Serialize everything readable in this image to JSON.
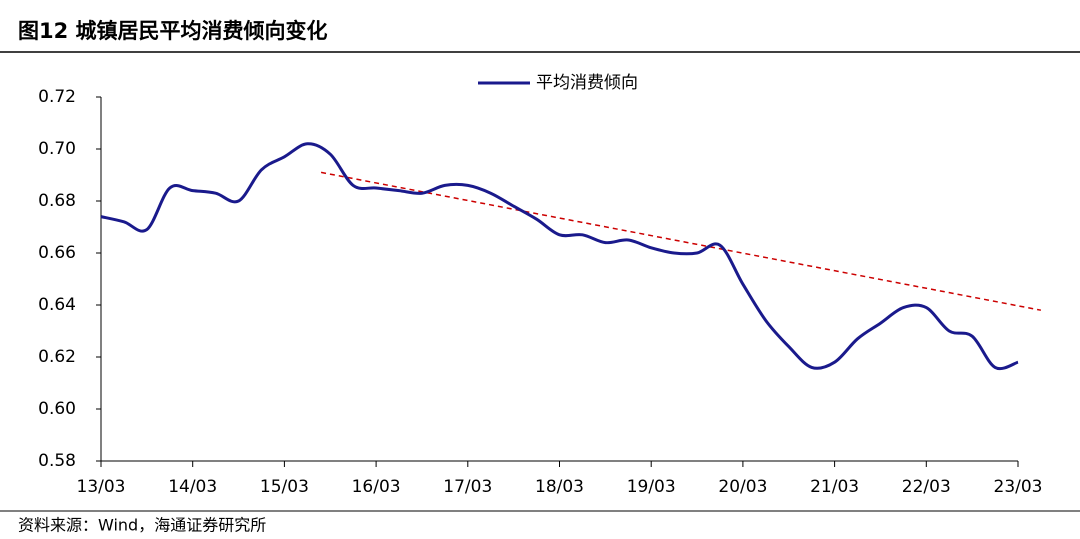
{
  "header": {
    "title": "图12 城镇居民平均消费倾向变化"
  },
  "chart_data": {
    "type": "line",
    "categories": [
      "13/03",
      null,
      null,
      null,
      "14/03",
      null,
      null,
      null,
      "15/03",
      null,
      null,
      null,
      "16/03",
      null,
      null,
      null,
      "17/03",
      null,
      null,
      null,
      "18/03",
      null,
      null,
      null,
      "19/03",
      null,
      null,
      null,
      "20/03",
      null,
      null,
      null,
      "21/03",
      null,
      null,
      null,
      "22/03",
      null,
      null,
      null,
      "23/03"
    ],
    "series": [
      {
        "name": "平均消费倾向",
        "color": "#1a1a8c",
        "values": [
          0.674,
          0.672,
          0.669,
          0.685,
          0.684,
          0.683,
          0.68,
          0.692,
          0.697,
          0.702,
          0.698,
          0.686,
          0.685,
          0.684,
          0.683,
          0.686,
          0.686,
          0.683,
          0.678,
          0.673,
          0.667,
          0.667,
          0.664,
          0.665,
          0.662,
          0.66,
          0.66,
          0.663,
          0.648,
          0.634,
          0.624,
          0.616,
          0.618,
          0.627,
          0.633,
          0.639,
          0.639,
          0.63,
          0.628,
          0.616,
          0.618
        ]
      }
    ],
    "trend": {
      "color": "#cc0000",
      "x": [
        9.6,
        41
      ],
      "values": [
        0.691,
        0.638
      ]
    },
    "ylim": [
      0.58,
      0.72
    ],
    "yticks": [
      {
        "value": 0.58,
        "label": "0.58"
      },
      {
        "value": 0.6,
        "label": "0.60"
      },
      {
        "value": 0.62,
        "label": "0.62"
      },
      {
        "value": 0.64,
        "label": "0.64"
      },
      {
        "value": 0.66,
        "label": "0.66"
      },
      {
        "value": 0.68,
        "label": "0.68"
      },
      {
        "value": 0.7,
        "label": "0.70"
      },
      {
        "value": 0.72,
        "label": "0.72"
      }
    ],
    "legend": "top"
  },
  "footer": {
    "source": "资料来源：Wind，海通证券研究所"
  }
}
